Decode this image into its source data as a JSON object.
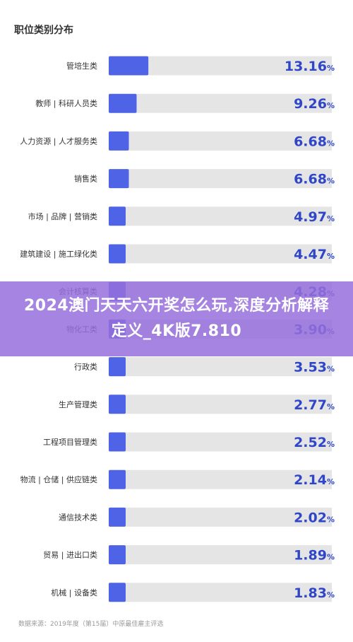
{
  "chart_data": {
    "type": "bar",
    "orientation": "horizontal",
    "title": "职位类别分布",
    "categories": [
      "管培生类",
      "教师 | 科研人员类",
      "人力资源 | 人才服务类",
      "销售类",
      "市场 | 品牌 | 营销类",
      "建筑建设 | 施工绿化类",
      "会计核算类",
      "物化工类",
      "行政类",
      "生产管理类",
      "工程项目管理类",
      "物流 | 仓储 | 供应链类",
      "通信技术类",
      "贸易 | 进出口类",
      "机械 | 设备类"
    ],
    "values": [
      13.16,
      9.26,
      6.68,
      6.68,
      4.97,
      4.47,
      4.28,
      3.9,
      3.53,
      2.77,
      2.52,
      2.14,
      2.02,
      1.89,
      1.83
    ],
    "value_unit": "%",
    "xlim": [
      0,
      100
    ],
    "bar_color": "#4f63e6",
    "track_color": "#e5e5e5",
    "label_color": "#2f46c9"
  },
  "banner": {
    "text": "2024澳门天天六开奖怎么玩,深度分析解释定义_4K版7.810"
  },
  "source": "数据来源：2019年度（第15届）中原最佳雇主评选"
}
